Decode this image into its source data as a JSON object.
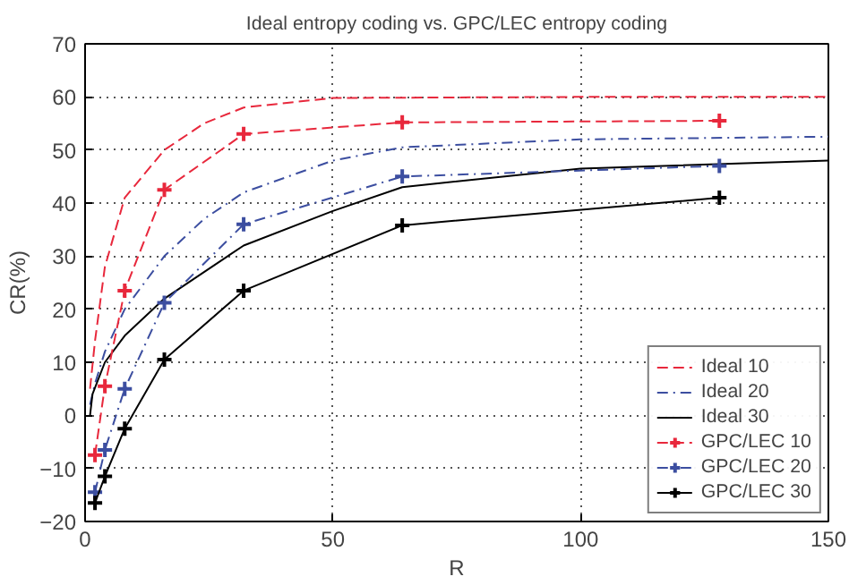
{
  "chart_data": {
    "type": "line",
    "title": "Ideal entropy coding vs. GPC/LEC entropy coding",
    "xlabel": "R",
    "ylabel": "CR(%)",
    "xlim": [
      0,
      150
    ],
    "ylim": [
      -20,
      70
    ],
    "xticks": [
      0,
      50,
      100,
      150
    ],
    "yticks": [
      -20,
      -10,
      0,
      10,
      20,
      30,
      40,
      50,
      60,
      70
    ],
    "grid": true,
    "legend": "bottom right",
    "series": [
      {
        "name": "Ideal 10",
        "color": "#e8283c",
        "line_style": "dashed",
        "marker": "none",
        "x": [
          1,
          2,
          4,
          8,
          16,
          24,
          32,
          50,
          100,
          150
        ],
        "values": [
          5,
          14,
          28,
          41,
          50,
          55,
          58,
          59.8,
          60,
          60
        ]
      },
      {
        "name": "Ideal 20",
        "color": "#3c4ea0",
        "line_style": "dashdot",
        "marker": "none",
        "x": [
          1,
          2,
          4,
          8,
          16,
          24,
          32,
          50,
          64,
          100,
          150
        ],
        "values": [
          2,
          6,
          12,
          20,
          30,
          37,
          42,
          48,
          50.5,
          52,
          52.5
        ]
      },
      {
        "name": "Ideal 30",
        "color": "#000000",
        "line_style": "solid",
        "marker": "none",
        "x": [
          1,
          1.5,
          4,
          8,
          16,
          32,
          50,
          64,
          100,
          150
        ],
        "values": [
          0,
          4,
          10,
          15,
          22,
          32,
          38.5,
          43,
          46.5,
          48
        ]
      },
      {
        "name": "GPC/LEC 10",
        "color": "#e8283c",
        "line_style": "dashed",
        "marker": "cross",
        "x": [
          2,
          4,
          8,
          16,
          32,
          64,
          128
        ],
        "values": [
          -7.5,
          5.5,
          23.5,
          42.5,
          53,
          55.2,
          55.5
        ]
      },
      {
        "name": "GPC/LEC 20",
        "color": "#3c4ea0",
        "line_style": "dashdot",
        "marker": "cross",
        "x": [
          2,
          4,
          8,
          16,
          32,
          64,
          128
        ],
        "values": [
          -14.5,
          -6.5,
          5,
          21.2,
          36,
          45,
          47
        ]
      },
      {
        "name": "GPC/LEC 30",
        "color": "#000000",
        "line_style": "solid",
        "marker": "cross",
        "x": [
          2,
          4,
          8,
          16,
          32,
          64,
          128
        ],
        "values": [
          -16.5,
          -11.5,
          -2.5,
          10.5,
          23.5,
          35.8,
          41
        ]
      }
    ]
  }
}
